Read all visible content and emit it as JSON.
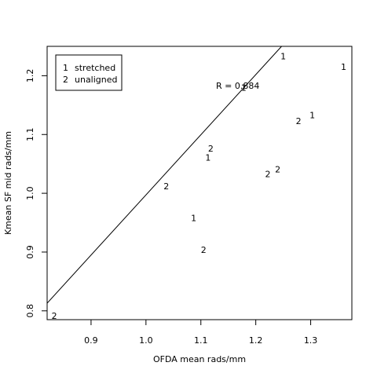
{
  "chart_data": {
    "type": "scatter",
    "title": "",
    "xlabel": "OFDA mean rads/mm",
    "ylabel": "Kmean SF mid rads/mm",
    "xlim": [
      0.82,
      1.375
    ],
    "ylim": [
      0.785,
      1.25
    ],
    "xticks": [
      0.9,
      1.0,
      1.1,
      1.2,
      1.3
    ],
    "xtick_labels": [
      "0.9",
      "1.0",
      "1.1",
      "1.2",
      "1.3"
    ],
    "yticks": [
      0.8,
      0.9,
      1.0,
      1.1,
      1.2
    ],
    "ytick_labels": [
      "0.8",
      "0.9",
      "1.0",
      "1.1",
      "1.2"
    ],
    "points": [
      {
        "x": 1.25,
        "y": 1.233,
        "label": "1"
      },
      {
        "x": 1.36,
        "y": 1.215,
        "label": "1"
      },
      {
        "x": 1.178,
        "y": 1.18,
        "label": "1"
      },
      {
        "x": 1.303,
        "y": 1.133,
        "label": "1"
      },
      {
        "x": 1.113,
        "y": 1.061,
        "label": "1"
      },
      {
        "x": 1.087,
        "y": 0.958,
        "label": "1"
      },
      {
        "x": 0.833,
        "y": 0.792,
        "label": "2"
      },
      {
        "x": 1.037,
        "y": 1.012,
        "label": "2"
      },
      {
        "x": 1.105,
        "y": 0.904,
        "label": "2"
      },
      {
        "x": 1.118,
        "y": 1.076,
        "label": "2"
      },
      {
        "x": 1.222,
        "y": 1.033,
        "label": "2"
      },
      {
        "x": 1.24,
        "y": 1.041,
        "label": "2"
      },
      {
        "x": 1.278,
        "y": 1.123,
        "label": "2"
      }
    ],
    "line": {
      "x1": 0.82,
      "y1": 0.813,
      "x2": 1.247,
      "y2": 1.25
    },
    "annotation": "R = 0.884",
    "legend": {
      "position": "top-left",
      "entries": [
        {
          "symbol": "1",
          "label": "stretched"
        },
        {
          "symbol": "2",
          "label": "unaligned"
        }
      ]
    },
    "grid": false
  }
}
